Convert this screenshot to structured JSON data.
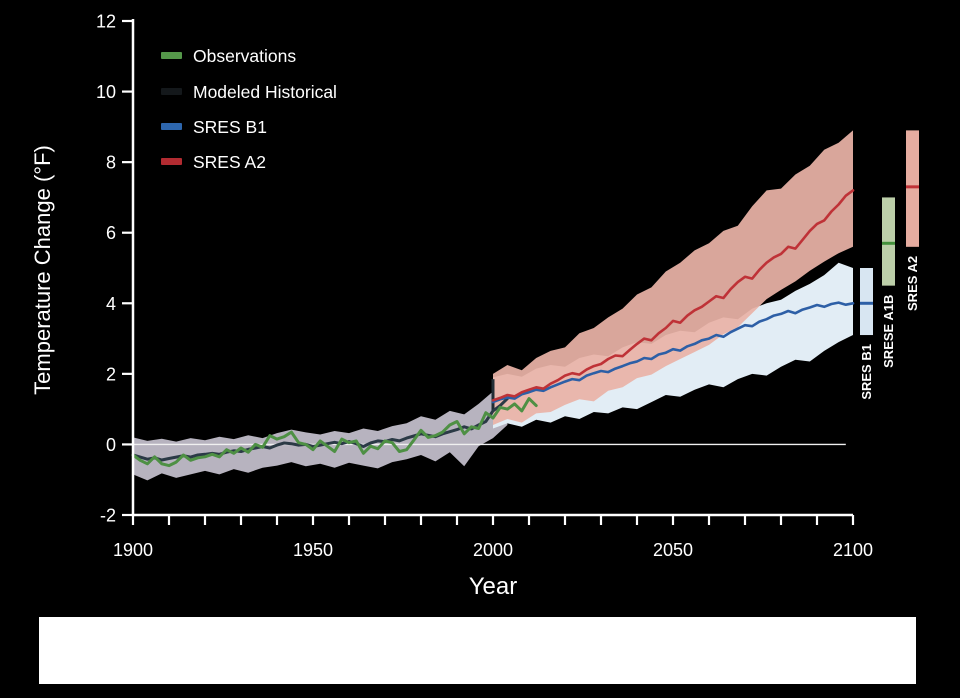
{
  "canvas": {
    "background": "#000000",
    "caption_box_color": "#ffffff"
  },
  "chart_data": {
    "type": "line",
    "title": "",
    "xlabel": "Year",
    "ylabel": "Temperature Change (°F)",
    "xlim": [
      1900,
      2100
    ],
    "ylim": [
      -2,
      12
    ],
    "x_ticks_labeled": [
      1900,
      1950,
      2000,
      2050,
      2100
    ],
    "x_tick_step": 10,
    "y_ticks": [
      -2,
      0,
      2,
      4,
      6,
      8,
      10,
      12
    ],
    "grid": "off",
    "legend_position": "top-left-inside",
    "zero_line": {
      "value": 0,
      "x_start": 1900,
      "x_end": 2098,
      "color": "#f0f0f0"
    },
    "junction_marker": {
      "year": 2000,
      "value_from": 0.95,
      "value_to": 1.85,
      "color": "#222e36"
    },
    "legend": {
      "items": [
        {
          "label": "Observations",
          "color": "#55984a"
        },
        {
          "label": "Modeled Historical",
          "color": "#14181b"
        },
        {
          "label": "SRES B1",
          "color": "#2d66ad"
        },
        {
          "label": "SRES A2",
          "color": "#b22b31"
        }
      ]
    },
    "series": [
      {
        "id": "modeled_historical",
        "name": "Modeled Historical",
        "color": "#2b3a46",
        "line_width": 3,
        "band_color": "#b7b3bf",
        "band_opacity": 1,
        "start_year": 1900,
        "step": 2,
        "values": [
          -0.3,
          -0.36,
          -0.42,
          -0.38,
          -0.44,
          -0.4,
          -0.36,
          -0.32,
          -0.36,
          -0.3,
          -0.28,
          -0.25,
          -0.28,
          -0.22,
          -0.18,
          -0.2,
          -0.14,
          -0.1,
          -0.06,
          -0.1,
          -0.02,
          0.04,
          0.02,
          -0.02,
          0.0,
          -0.06,
          -0.02,
          0.02,
          0.06,
          0.02,
          0.08,
          0.02,
          -0.06,
          0.04,
          0.1,
          0.08,
          0.14,
          0.1,
          0.18,
          0.24,
          0.3,
          0.26,
          0.22,
          0.3,
          0.36,
          0.42,
          0.5,
          0.44,
          0.55,
          0.65,
          0.95,
          1.1,
          1.3
        ],
        "band": {
          "start_year": 1900,
          "step": 4,
          "upper": [
            0.2,
            0.1,
            0.16,
            0.08,
            0.18,
            0.12,
            0.22,
            0.15,
            0.26,
            0.18,
            0.32,
            0.42,
            0.34,
            0.28,
            0.38,
            0.32,
            0.45,
            0.38,
            0.52,
            0.6,
            0.8,
            0.7,
            0.95,
            0.85,
            1.15,
            1.5,
            1.85
          ],
          "lower": [
            -0.85,
            -1.02,
            -0.82,
            -0.95,
            -0.85,
            -0.75,
            -0.85,
            -0.7,
            -0.8,
            -0.66,
            -0.6,
            -0.5,
            -0.62,
            -0.55,
            -0.66,
            -0.52,
            -0.6,
            -0.68,
            -0.5,
            -0.42,
            -0.3,
            -0.48,
            -0.22,
            -0.62,
            -0.05,
            0.18,
            0.55
          ]
        }
      },
      {
        "id": "sres_b1",
        "name": "SRES B1",
        "color": "#2d5fa6",
        "line_width": 2.6,
        "band_color": "#e2edf5",
        "band_opacity": 1,
        "start_year": 2000,
        "step": 2,
        "values": [
          1.2,
          1.28,
          1.33,
          1.3,
          1.42,
          1.48,
          1.55,
          1.52,
          1.62,
          1.7,
          1.78,
          1.85,
          1.82,
          1.95,
          2.02,
          2.08,
          2.05,
          2.15,
          2.22,
          2.3,
          2.35,
          2.45,
          2.42,
          2.55,
          2.6,
          2.7,
          2.66,
          2.78,
          2.85,
          2.95,
          3.0,
          3.1,
          3.05,
          3.18,
          3.28,
          3.38,
          3.35,
          3.48,
          3.55,
          3.65,
          3.7,
          3.78,
          3.72,
          3.82,
          3.88,
          3.95,
          3.9,
          3.98,
          4.02,
          3.96,
          4.0
        ],
        "band": {
          "start_year": 2000,
          "step": 4,
          "upper": [
            1.9,
            2.0,
            1.92,
            2.15,
            2.25,
            2.2,
            2.45,
            2.55,
            2.5,
            2.75,
            2.9,
            2.85,
            3.1,
            3.22,
            3.18,
            3.45,
            3.6,
            3.55,
            3.85,
            4.0,
            4.1,
            4.35,
            4.55,
            4.8,
            5.15,
            5.0
          ],
          "lower": [
            0.45,
            0.6,
            0.5,
            0.7,
            0.62,
            0.8,
            0.72,
            0.92,
            0.88,
            1.05,
            1.0,
            1.2,
            1.4,
            1.35,
            1.55,
            1.7,
            1.62,
            1.85,
            2.0,
            1.95,
            2.2,
            2.4,
            2.35,
            2.65,
            2.9,
            3.1
          ]
        }
      },
      {
        "id": "sres_a2",
        "name": "SRES A2",
        "color": "#bf3237",
        "line_width": 2.6,
        "band_color": "#e9b3a7",
        "band_opacity": 0.93,
        "start_year": 2000,
        "step": 2,
        "values": [
          1.25,
          1.32,
          1.4,
          1.36,
          1.48,
          1.55,
          1.62,
          1.58,
          1.72,
          1.82,
          1.95,
          2.02,
          1.98,
          2.12,
          2.22,
          2.28,
          2.42,
          2.52,
          2.5,
          2.68,
          2.85,
          3.0,
          2.95,
          3.15,
          3.3,
          3.5,
          3.45,
          3.65,
          3.8,
          3.9,
          4.05,
          4.2,
          4.15,
          4.4,
          4.6,
          4.75,
          4.7,
          4.95,
          5.15,
          5.3,
          5.4,
          5.6,
          5.55,
          5.8,
          6.05,
          6.25,
          6.35,
          6.6,
          6.8,
          7.05,
          7.2
        ],
        "band": {
          "start_year": 2000,
          "step": 4,
          "upper": [
            2.0,
            2.25,
            2.1,
            2.45,
            2.65,
            2.75,
            3.15,
            3.3,
            3.6,
            3.85,
            4.25,
            4.45,
            4.9,
            5.15,
            5.5,
            5.7,
            6.05,
            6.2,
            6.75,
            7.2,
            7.25,
            7.65,
            7.9,
            8.35,
            8.55,
            8.9
          ],
          "lower": [
            0.55,
            0.72,
            0.62,
            0.88,
            0.92,
            1.12,
            1.28,
            1.22,
            1.52,
            1.62,
            1.88,
            1.98,
            2.22,
            2.42,
            2.62,
            2.82,
            3.12,
            3.32,
            3.72,
            4.12,
            4.38,
            4.62,
            4.92,
            5.18,
            5.42,
            5.6
          ]
        }
      },
      {
        "id": "observations",
        "name": "Observations",
        "color": "#4e9044",
        "line_width": 3,
        "start_year": 1900,
        "step": 2,
        "values": [
          -0.3,
          -0.45,
          -0.55,
          -0.35,
          -0.55,
          -0.6,
          -0.5,
          -0.3,
          -0.45,
          -0.38,
          -0.35,
          -0.28,
          -0.35,
          -0.15,
          -0.25,
          -0.1,
          -0.22,
          0.0,
          -0.08,
          0.25,
          0.15,
          0.22,
          0.35,
          0.05,
          0.0,
          -0.15,
          0.1,
          -0.05,
          -0.2,
          0.15,
          0.05,
          0.1,
          -0.25,
          -0.05,
          -0.12,
          0.1,
          0.05,
          -0.2,
          -0.15,
          0.12,
          0.4,
          0.2,
          0.25,
          0.35,
          0.55,
          0.65,
          0.3,
          0.5,
          0.45,
          0.9,
          0.75,
          1.05,
          1.0,
          1.15,
          0.95,
          1.3,
          1.1
        ]
      }
    ],
    "side_bars": [
      {
        "label": "SRES B1",
        "bar_color": "#d8e6f2",
        "line_color": "#2d5fa6",
        "top": 5.0,
        "bottom": 3.1,
        "mid": 4.0,
        "x": 860,
        "width": 13
      },
      {
        "label": "SRESE A1B",
        "bar_color": "#bccfa9",
        "line_color": "#43913c",
        "top": 7.0,
        "bottom": 4.5,
        "mid": 5.7,
        "x": 882,
        "width": 13
      },
      {
        "label": "SRES A2",
        "bar_color": "#e6aca0",
        "line_color": "#bf3237",
        "top": 8.9,
        "bottom": 5.6,
        "mid": 7.3,
        "x": 906,
        "width": 13
      }
    ]
  }
}
